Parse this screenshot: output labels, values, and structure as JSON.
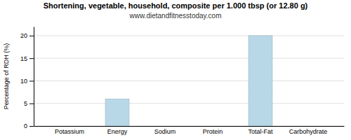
{
  "chart_data": {
    "type": "bar",
    "title": "Shortening, vegetable, household, composite per 1.000 tbsp (or 12.80 g)",
    "subtitle": "www.dietandfitnesstoday.com",
    "categories": [
      "Potassium",
      "Energy",
      "Sodium",
      "Protein",
      "Total-Fat",
      "Carbohydrate"
    ],
    "values": [
      0,
      6,
      0,
      0,
      20,
      0
    ],
    "color": "#b8d8e8",
    "ylabel": "Percentage of RDH (%)",
    "ylim": [
      0,
      22
    ],
    "yticks": [
      0,
      5,
      10,
      15,
      20
    ],
    "grid": true
  }
}
